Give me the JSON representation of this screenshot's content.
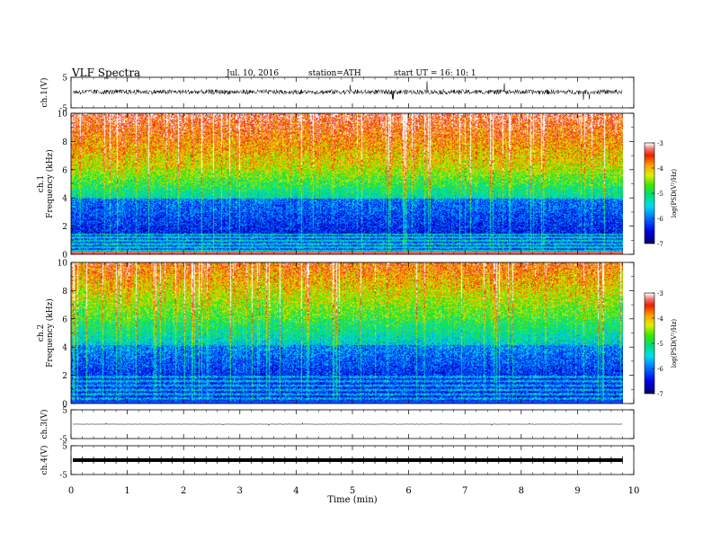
{
  "header": {
    "title": "VLF  Spectra",
    "date": "Jul.  10,  2016",
    "station": "station=ATH",
    "start": "start  UT  =    16: 10: 1"
  },
  "chart_data": {
    "type": "heatmap",
    "xlabel": "Time  (min)",
    "x_ticks": [
      "0",
      "1",
      "2",
      "3",
      "4",
      "5",
      "6",
      "7",
      "8",
      "9",
      "10"
    ],
    "xlim": [
      0,
      10
    ],
    "data_end_min": 9.8,
    "panels": [
      {
        "id": "ch1-waveform",
        "type": "line",
        "ylabel": "ch.1(V)",
        "ylim": [
          -5,
          5
        ],
        "y_ticks": [
          "5",
          "-5"
        ],
        "baseline": 0.2,
        "noise_amp": 0.8,
        "spike_amp": 3.5
      },
      {
        "id": "ch1-spectrogram",
        "type": "heatmap",
        "ylabel_lines": [
          "ch.1",
          "Frequency  (kHz)"
        ],
        "ylim": [
          0,
          10
        ],
        "y_ticks": [
          "0",
          "2",
          "4",
          "6",
          "8",
          "10"
        ],
        "colorbar": {
          "label": "log(PSD(V²/Hz)",
          "range": [
            -7,
            -3
          ],
          "ticks": [
            "-3",
            "-4",
            "-5",
            "-6",
            "-7"
          ]
        }
      },
      {
        "id": "ch2-spectrogram",
        "type": "heatmap",
        "ylabel_lines": [
          "ch.2",
          "Frequency  (kHz)"
        ],
        "ylim": [
          0,
          10
        ],
        "y_ticks": [
          "0",
          "2",
          "4",
          "6",
          "8",
          "10"
        ],
        "colorbar": {
          "label": "log(PSD(V²/Hz)",
          "range": [
            -7,
            -3
          ],
          "ticks": [
            "-3",
            "-4",
            "-5",
            "-6",
            "-7"
          ]
        }
      },
      {
        "id": "ch3-waveform",
        "type": "line",
        "ylabel": "ch.3(V)",
        "ylim": [
          -5,
          5
        ],
        "y_ticks": [
          "5",
          "-5"
        ],
        "baseline": 0.0,
        "noise_amp": 0.05,
        "spike_amp": 0.4
      },
      {
        "id": "ch4-waveform",
        "type": "line",
        "ylabel": "ch.4(V)",
        "ylim": [
          -5,
          5
        ],
        "y_ticks": [
          "5",
          "-5"
        ],
        "baseline": 0.0,
        "thick": true
      }
    ]
  }
}
